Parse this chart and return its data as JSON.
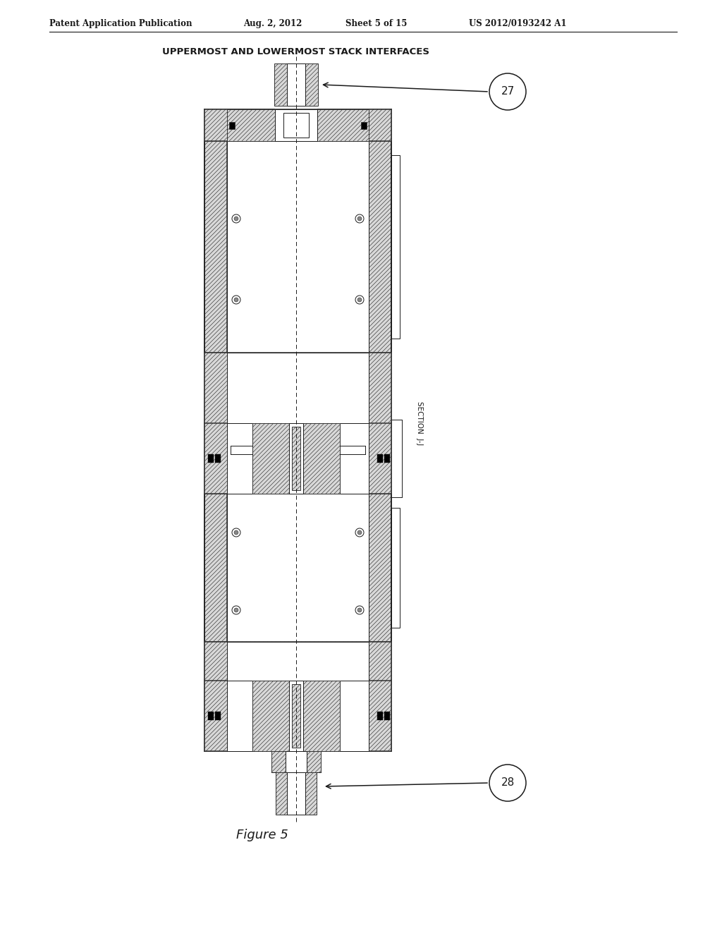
{
  "title": "UPPERMOST AND LOWERMOST STACK INTERFACES",
  "patent_left": "Patent Application Publication",
  "patent_date": "Aug. 2, 2012",
  "patent_sheet": "Sheet 5 of 15",
  "patent_number": "US 2012/0193242 A1",
  "figure_label": "Figure 5",
  "section_label": "SECTION  J-J",
  "label_27": "27",
  "label_28": "28",
  "bg_color": "#ffffff",
  "line_color": "#1a1a1a",
  "hatch_bg": "#d8d8d8",
  "hatch_col": "#333333"
}
